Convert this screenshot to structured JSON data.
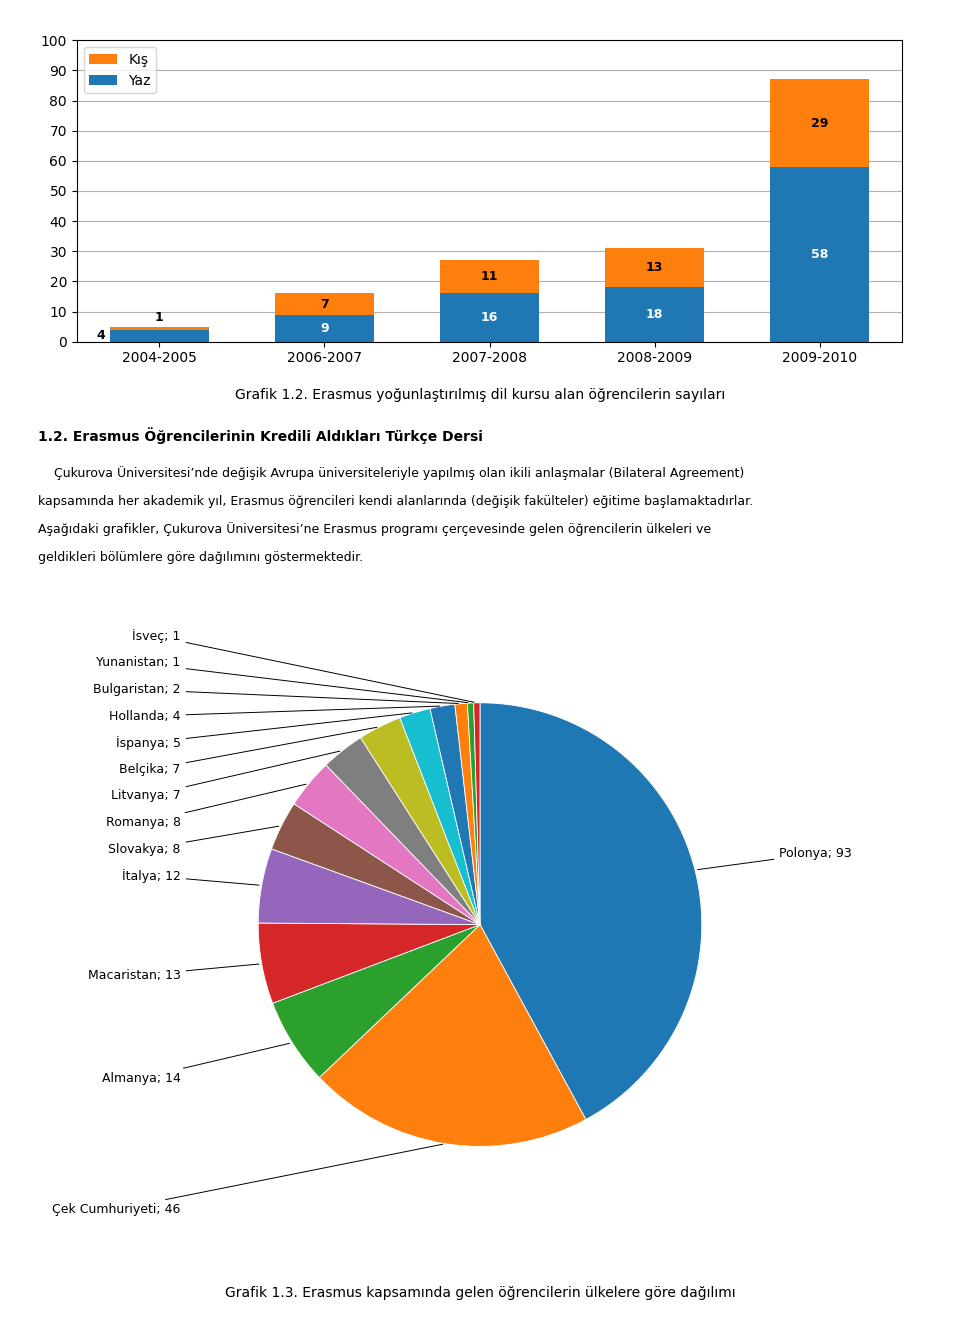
{
  "chart_data": [
    {
      "type": "bar",
      "title": "Grafik 1.2. Erasmus yoğunlaştırılmış dil kursu alan öğrencilerin sayıları",
      "categories": [
        "2004-2005",
        "2006-2007",
        "2007-2008",
        "2008-2009",
        "2009-2010"
      ],
      "series": [
        {
          "name": "Yaz",
          "values": [
            4,
            9,
            16,
            18,
            58
          ]
        },
        {
          "name": "Kış",
          "values": [
            1,
            7,
            11,
            13,
            29
          ]
        }
      ],
      "stacked": true,
      "ylim": [
        0,
        100
      ],
      "yticks": [
        0,
        10,
        20,
        30,
        40,
        50,
        60,
        70,
        80,
        90,
        100
      ],
      "grid": true,
      "data_labels": true,
      "legend": "upper left",
      "annotations": [
        "1.2. Erasmus Öğrencilerinin Kredili Aldıkları Türkçe Dersi",
        "    Çukurova Üniversitesi’nde değişik Avrupa üniversiteleriyle yapılmış olan ikili anlaşmalar (Bilateral Agreement)",
        "kapsamında her akademik yıl, Erasmus öğrencileri kendi alanlarında (değişik fakülteler) eğitime başlamaktadırlar.",
        "Aşağıdaki grafikler, Çukurova Üniversitesi’ne Erasmus programı çerçevesinde gelen öğrencilerin ülkeleri ve",
        "geldikleri bölümlere göre dağılımını göstermektedir."
      ]
    },
    {
      "type": "pie",
      "title": "Grafik 1.3. Erasmus kapsamında gelen öğrencilerin ülkelere göre dağılımı",
      "categories": [
        "Polonya; 93",
        "Çek Cumhuriyeti; 46",
        "Almanya; 14",
        "Macaristan; 13",
        "İtalya; 12",
        "Slovakya; 8",
        "Romanya; 8",
        "Litvanya; 7",
        "Belçika; 7",
        "İspanya; 5",
        "Hollanda; 4",
        "Bulgaristan; 2",
        "Yunanistan; 1",
        "İsveç; 1"
      ],
      "values": [
        93,
        46,
        14,
        13,
        12,
        8,
        8,
        7,
        7,
        5,
        4,
        2,
        1,
        1
      ]
    }
  ]
}
